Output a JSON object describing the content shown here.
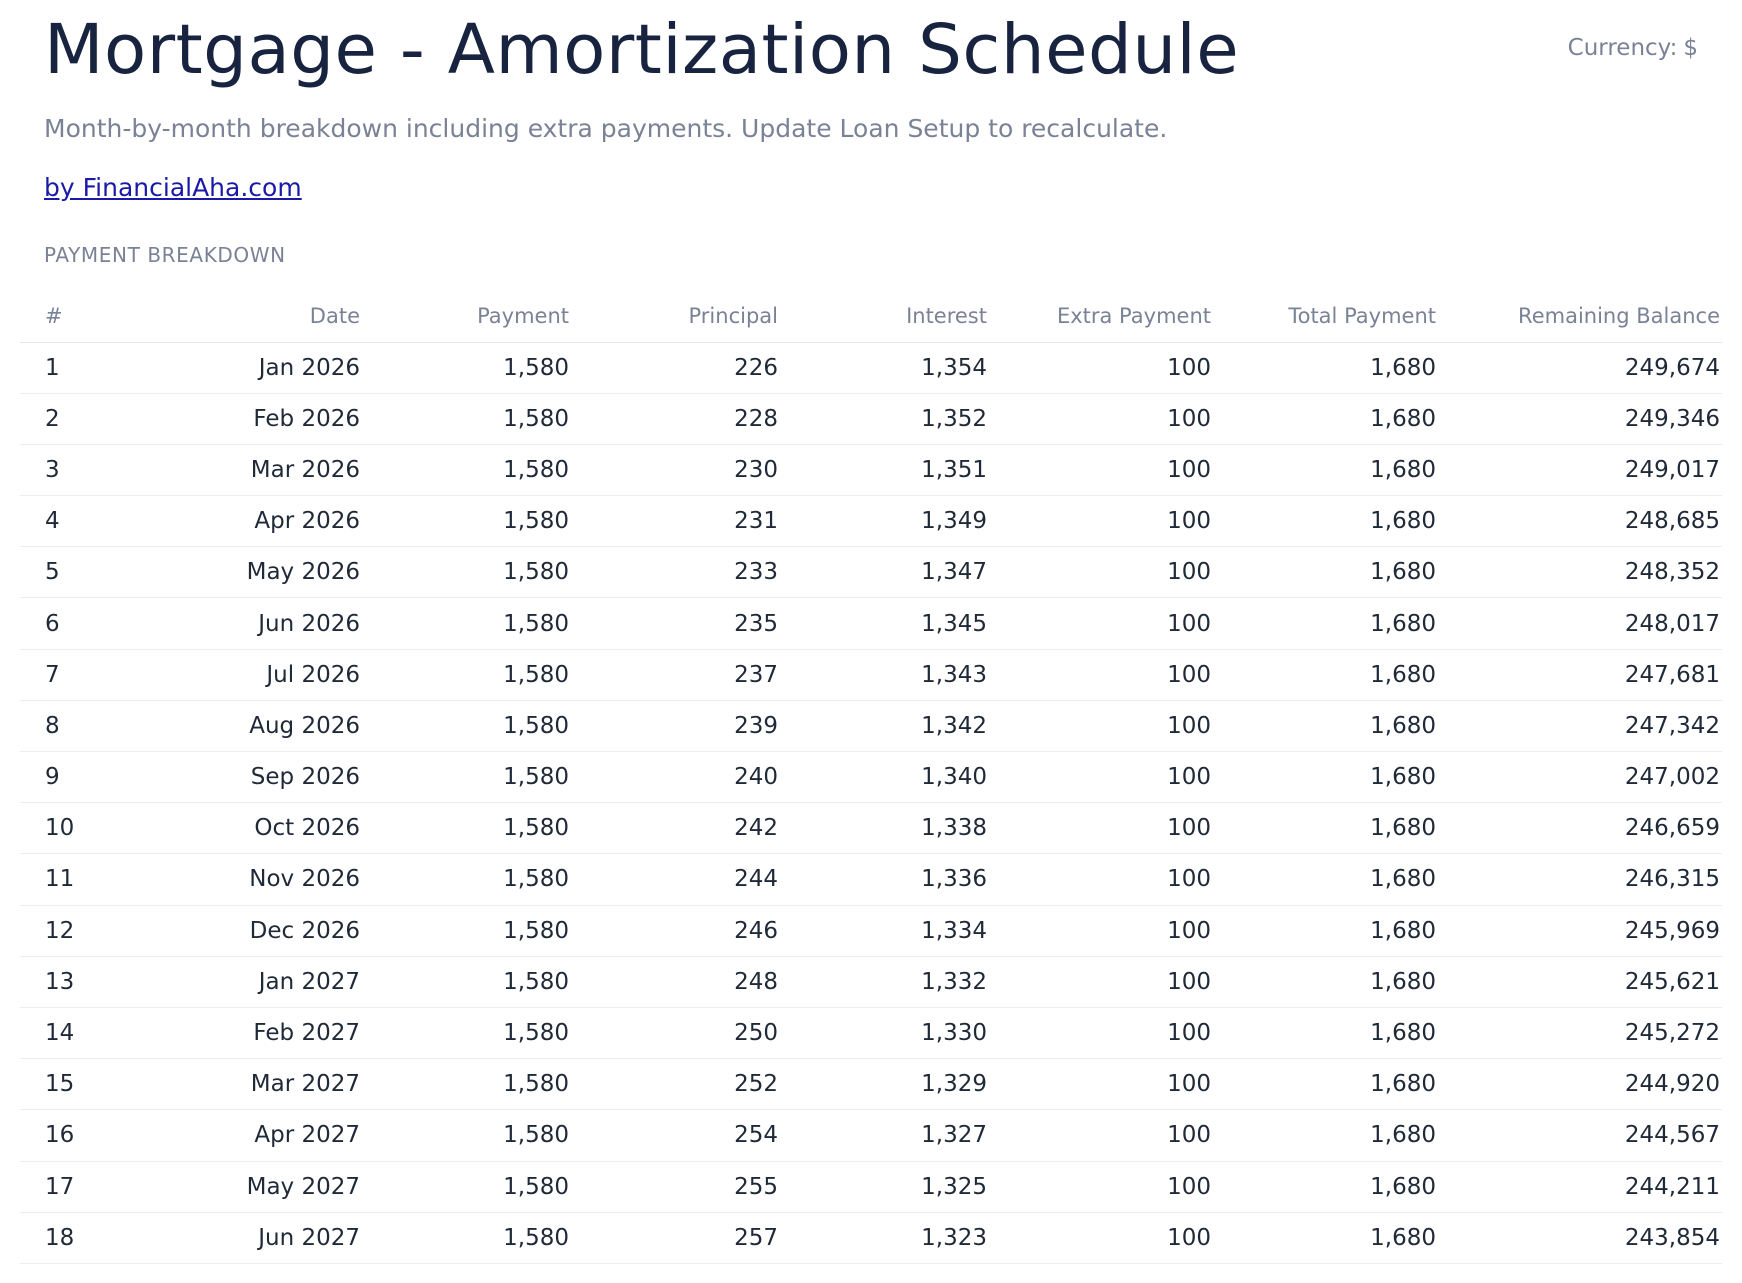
{
  "header": {
    "title": "Mortgage - Amortization Schedule",
    "currency_label": "Currency:",
    "currency_symbol": "$",
    "subtitle": "Month-by-month breakdown including extra payments. Update Loan Setup to recalculate.",
    "byline": "by FinancialAha.com"
  },
  "section": {
    "label": "PAYMENT BREAKDOWN"
  },
  "table": {
    "columns": [
      "#",
      "Date",
      "Payment",
      "Principal",
      "Interest",
      "Extra Payment",
      "Total Payment",
      "Remaining Balance"
    ],
    "rows": [
      [
        "1",
        "Jan 2026",
        "1,580",
        "226",
        "1,354",
        "100",
        "1,680",
        "249,674"
      ],
      [
        "2",
        "Feb 2026",
        "1,580",
        "228",
        "1,352",
        "100",
        "1,680",
        "249,346"
      ],
      [
        "3",
        "Mar 2026",
        "1,580",
        "230",
        "1,351",
        "100",
        "1,680",
        "249,017"
      ],
      [
        "4",
        "Apr 2026",
        "1,580",
        "231",
        "1,349",
        "100",
        "1,680",
        "248,685"
      ],
      [
        "5",
        "May 2026",
        "1,580",
        "233",
        "1,347",
        "100",
        "1,680",
        "248,352"
      ],
      [
        "6",
        "Jun 2026",
        "1,580",
        "235",
        "1,345",
        "100",
        "1,680",
        "248,017"
      ],
      [
        "7",
        "Jul 2026",
        "1,580",
        "237",
        "1,343",
        "100",
        "1,680",
        "247,681"
      ],
      [
        "8",
        "Aug 2026",
        "1,580",
        "239",
        "1,342",
        "100",
        "1,680",
        "247,342"
      ],
      [
        "9",
        "Sep 2026",
        "1,580",
        "240",
        "1,340",
        "100",
        "1,680",
        "247,002"
      ],
      [
        "10",
        "Oct 2026",
        "1,580",
        "242",
        "1,338",
        "100",
        "1,680",
        "246,659"
      ],
      [
        "11",
        "Nov 2026",
        "1,580",
        "244",
        "1,336",
        "100",
        "1,680",
        "246,315"
      ],
      [
        "12",
        "Dec 2026",
        "1,580",
        "246",
        "1,334",
        "100",
        "1,680",
        "245,969"
      ],
      [
        "13",
        "Jan 2027",
        "1,580",
        "248",
        "1,332",
        "100",
        "1,680",
        "245,621"
      ],
      [
        "14",
        "Feb 2027",
        "1,580",
        "250",
        "1,330",
        "100",
        "1,680",
        "245,272"
      ],
      [
        "15",
        "Mar 2027",
        "1,580",
        "252",
        "1,329",
        "100",
        "1,680",
        "244,920"
      ],
      [
        "16",
        "Apr 2027",
        "1,580",
        "254",
        "1,327",
        "100",
        "1,680",
        "244,567"
      ],
      [
        "17",
        "May 2027",
        "1,580",
        "255",
        "1,325",
        "100",
        "1,680",
        "244,211"
      ],
      [
        "18",
        "Jun 2027",
        "1,580",
        "257",
        "1,323",
        "100",
        "1,680",
        "243,854"
      ]
    ]
  },
  "colors": {
    "title": "#18233f",
    "muted": "#7a8296",
    "link": "#1a1aa8",
    "text": "#1f2937",
    "divider": "#ececec"
  }
}
